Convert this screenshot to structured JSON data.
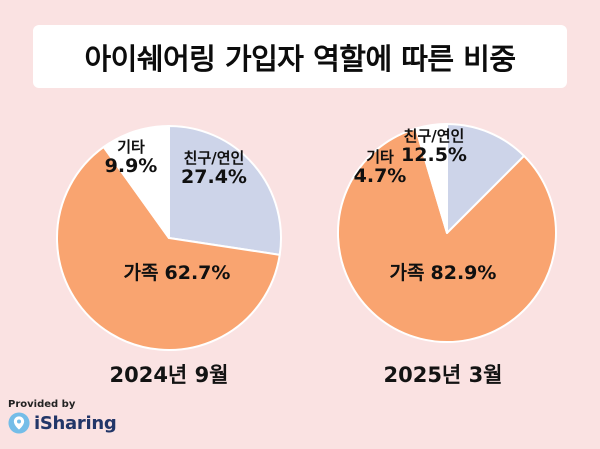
{
  "title": "아이쉐어링 가입자 역할에 따른 비중",
  "colors": {
    "background": "#FAE2E2",
    "family": "#F9A470",
    "friend_couple": "#CDD4E9",
    "other": "#FFFFFF",
    "title_card": "#FFFFFF",
    "brand_navy": "#223668",
    "logo_blue": "#74BDE8"
  },
  "chart_data": [
    {
      "type": "pie",
      "month_label": "2024년 9월",
      "unit": "%",
      "direction": "clockwise",
      "start_angle_deg": 0,
      "segments": [
        {
          "label": "친구/연인",
          "value": 27.4,
          "pct_text": "27.4%",
          "color": "#CDD4E9"
        },
        {
          "label": "가족",
          "value": 62.7,
          "pct_text": "62.7%",
          "color": "#F9A470"
        },
        {
          "label": "기타",
          "value": 9.9,
          "pct_text": "9.9%",
          "color": "#FFFFFF"
        }
      ]
    },
    {
      "type": "pie",
      "month_label": "2025년 3월",
      "unit": "%",
      "direction": "clockwise",
      "start_angle_deg": 0,
      "segments": [
        {
          "label": "친구/연인",
          "value": 12.5,
          "pct_text": "12.5%",
          "color": "#CDD4E9"
        },
        {
          "label": "가족",
          "value": 82.9,
          "pct_text": "82.9%",
          "color": "#F9A470"
        },
        {
          "label": "기타",
          "value": 4.7,
          "pct_text": "4.7%",
          "color": "#FFFFFF"
        }
      ]
    }
  ],
  "footer": {
    "provided_by": "Provided by",
    "brand": "iSharing"
  }
}
